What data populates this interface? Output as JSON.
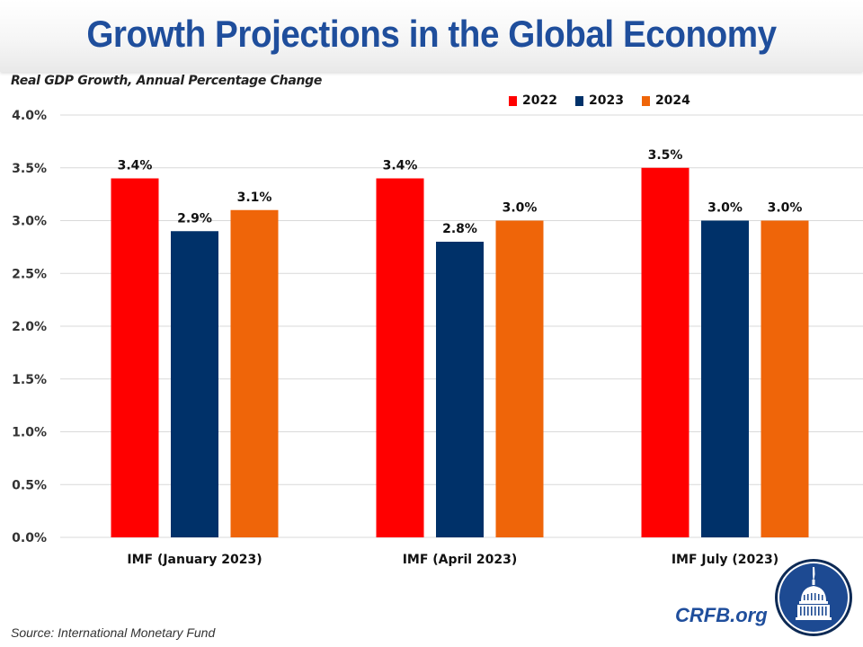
{
  "header": {
    "title": "Growth Projections in the Global Economy"
  },
  "subtitle": "Real GDP Growth, Annual Percentage Change",
  "footer": {
    "source": "Source: International  Monetary Fund",
    "brand": "CRFB.org",
    "logo_icon": "capitol-dome-icon"
  },
  "colors": {
    "2022": "#ff0000",
    "2023": "#003169",
    "2024": "#ef6509",
    "title": "#1f4e9c",
    "grid": "#d9d9d9"
  },
  "chart_data": {
    "type": "bar",
    "title": "Growth Projections in the Global Economy",
    "subtitle": "Real GDP Growth, Annual Percentage Change",
    "xlabel": "",
    "ylabel": "",
    "ylim": [
      0,
      4.0
    ],
    "yticks": [
      0,
      0.5,
      1.0,
      1.5,
      2.0,
      2.5,
      3.0,
      3.5,
      4.0
    ],
    "ytick_labels": [
      "0.0%",
      "0.5%",
      "1.0%",
      "1.5%",
      "2.0%",
      "2.5%",
      "3.0%",
      "3.5%",
      "4.0%"
    ],
    "grid": true,
    "legend_position": "top-right",
    "categories": [
      "IMF (January 2023)",
      "IMF (April 2023)",
      "IMF July (2023)"
    ],
    "series": [
      {
        "name": "2022",
        "color": "#ff0000",
        "values": [
          3.4,
          3.4,
          3.5
        ],
        "labels": [
          "3.4%",
          "3.4%",
          "3.5%"
        ]
      },
      {
        "name": "2023",
        "color": "#003169",
        "values": [
          2.9,
          2.8,
          3.0
        ],
        "labels": [
          "2.9%",
          "2.8%",
          "3.0%"
        ]
      },
      {
        "name": "2024",
        "color": "#ef6509",
        "values": [
          3.1,
          3.0,
          3.0
        ],
        "labels": [
          "3.1%",
          "3.0%",
          "3.0%"
        ]
      }
    ]
  }
}
